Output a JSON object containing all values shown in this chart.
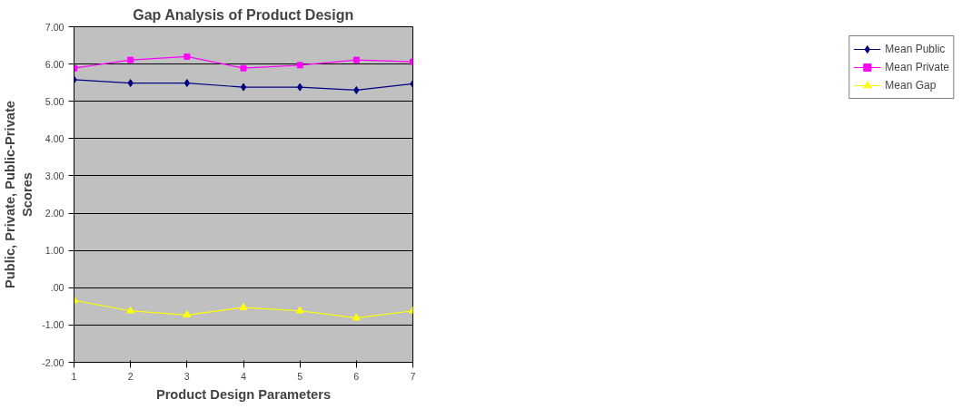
{
  "chart_data": {
    "type": "line",
    "title": "Gap Analysis of Product Design",
    "xlabel": "Product Design Parameters",
    "ylabel": "Public, Private, Public-Private\nScores",
    "x": [
      1,
      2,
      3,
      4,
      5,
      6,
      7
    ],
    "xlim": [
      1,
      7
    ],
    "xticks": [
      1,
      2,
      3,
      4,
      5,
      6,
      7
    ],
    "ylim": [
      -2,
      7
    ],
    "yticks": [
      {
        "value": -2,
        "label": "-2.00"
      },
      {
        "value": -1,
        "label": "-1.00"
      },
      {
        "value": 0,
        "label": ".00"
      },
      {
        "value": 1,
        "label": "1.00"
      },
      {
        "value": 2,
        "label": "2.00"
      },
      {
        "value": 3,
        "label": "3.00"
      },
      {
        "value": 4,
        "label": "4.00"
      },
      {
        "value": 5,
        "label": "5.00"
      },
      {
        "value": 6,
        "label": "6.00"
      },
      {
        "value": 7,
        "label": "7.00"
      }
    ],
    "grid": "y",
    "legend": "right",
    "line_style": "solid",
    "series": [
      {
        "name": "Mean Public",
        "color": "#000080",
        "marker": "diamond",
        "values": [
          5.58,
          5.49,
          5.49,
          5.38,
          5.38,
          5.3,
          5.47
        ]
      },
      {
        "name": "Mean Private",
        "color": "#ff00ff",
        "marker": "square",
        "values": [
          5.89,
          6.11,
          6.2,
          5.89,
          5.97,
          6.11,
          6.06
        ]
      },
      {
        "name": "Mean Gap",
        "color": "#ffff00",
        "marker": "triangle",
        "values": [
          -0.34,
          -0.62,
          -0.73,
          -0.53,
          -0.62,
          -0.81,
          -0.62
        ]
      }
    ]
  }
}
